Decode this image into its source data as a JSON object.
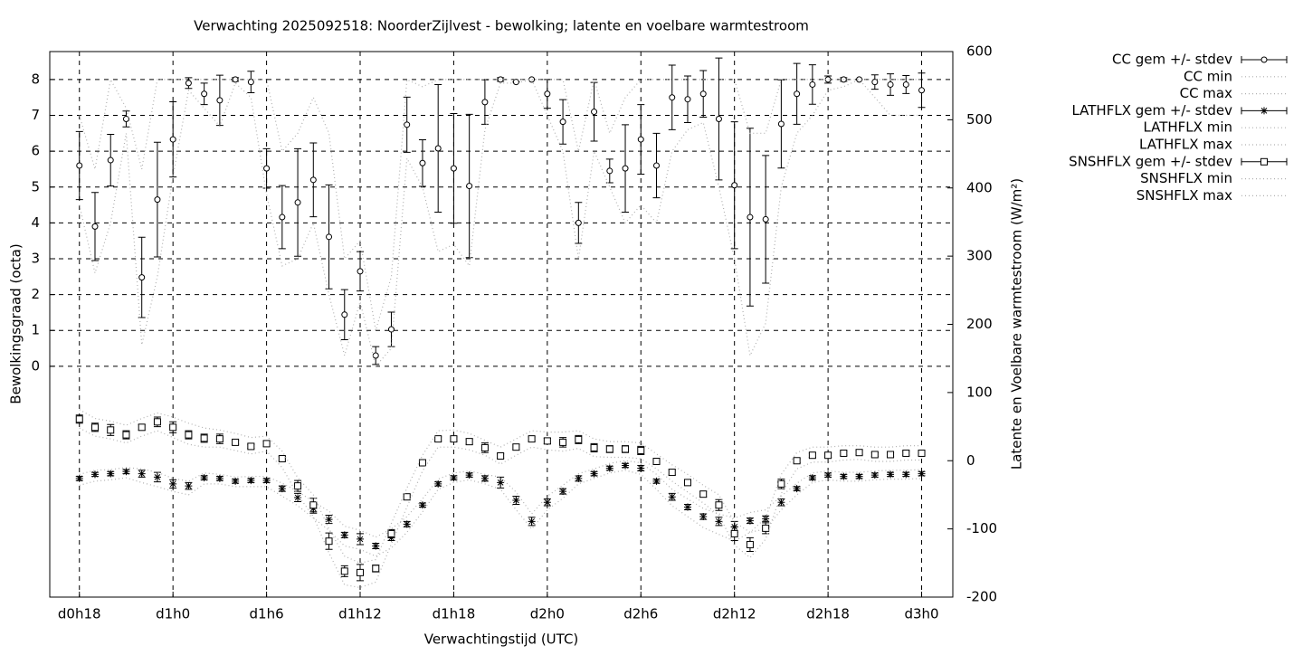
{
  "chart_data": {
    "type": "line",
    "title": "Verwachting 2025092518: NoorderZijlvest - bewolking; latente en voelbare warmtestroom",
    "x_label": "Verwachtingstijd (UTC)",
    "y_label": "Bewolkingsgraad (octa)",
    "y2_label": "Latente en Voelbare warmtestroom (W/m²)",
    "x": [
      18,
      19,
      20,
      21,
      22,
      23,
      24,
      25,
      26,
      27,
      28,
      29,
      30,
      31,
      32,
      33,
      34,
      35,
      36,
      37,
      38,
      39,
      40,
      41,
      42,
      43,
      44,
      45,
      46,
      47,
      48,
      49,
      50,
      51,
      52,
      53,
      54,
      55,
      56,
      57,
      58,
      59,
      60,
      61,
      62,
      63,
      64,
      65,
      66,
      67,
      68,
      69,
      70,
      71,
      72
    ],
    "xlim": [
      16.1,
      74
    ],
    "xticks": [
      {
        "value": 18,
        "label": "d0h18"
      },
      {
        "value": 24,
        "label": "d1h0"
      },
      {
        "value": 30,
        "label": "d1h6"
      },
      {
        "value": 36,
        "label": "d1h12"
      },
      {
        "value": 42,
        "label": "d1h18"
      },
      {
        "value": 48,
        "label": "d2h0"
      },
      {
        "value": 54,
        "label": "d2h6"
      },
      {
        "value": 60,
        "label": "d2h12"
      },
      {
        "value": 66,
        "label": "d2h18"
      },
      {
        "value": 72,
        "label": "d3h0"
      }
    ],
    "ylim": [
      -6.44,
      8.78
    ],
    "yticks": [
      0,
      1,
      2,
      3,
      4,
      5,
      6,
      7,
      8
    ],
    "y2lim": [
      -200,
      600
    ],
    "y2ticks": [
      -200,
      -100,
      0,
      100,
      200,
      300,
      400,
      500,
      600
    ],
    "grid": true,
    "legend": "outside-right",
    "series": [
      {
        "name": "CC gem +/- stdev",
        "axis": "y",
        "style": "errorbars",
        "marker": "circle",
        "color": "#000000",
        "values": [
          5.6,
          3.9,
          5.75,
          6.9,
          2.48,
          4.65,
          6.33,
          7.9,
          7.6,
          7.42,
          8.0,
          7.93,
          5.52,
          4.16,
          4.57,
          5.2,
          3.61,
          1.44,
          2.65,
          0.3,
          1.03,
          6.74,
          5.67,
          6.08,
          5.52,
          5.03,
          7.37,
          8.0,
          7.93,
          8.0,
          7.6,
          6.82,
          4.0,
          7.1,
          5.45,
          5.52,
          6.33,
          5.6,
          7.5,
          7.45,
          7.6,
          6.9,
          5.05,
          4.16,
          4.1,
          6.76,
          7.6,
          7.86,
          8.0,
          8.0,
          8.0,
          7.93,
          7.86,
          7.86,
          7.7
        ],
        "errors": [
          0.95,
          0.95,
          0.72,
          0.22,
          1.12,
          1.6,
          1.05,
          0.15,
          0.3,
          0.7,
          0.05,
          0.3,
          0.55,
          0.88,
          1.5,
          1.03,
          1.45,
          0.7,
          0.55,
          0.25,
          0.48,
          0.77,
          0.65,
          1.78,
          1.53,
          2.0,
          0.62,
          0.05,
          0,
          0,
          0.4,
          0.62,
          0.57,
          0.82,
          0.33,
          1.22,
          0.97,
          0.9,
          0.9,
          0.65,
          0.65,
          1.7,
          1.77,
          2.48,
          1.78,
          1.23,
          0.85,
          0.55,
          0.1,
          0.05,
          0,
          0.2,
          0.3,
          0.25,
          0.48
        ]
      },
      {
        "name": "CC min",
        "axis": "y",
        "style": "dotted",
        "color": "#b0b0b0",
        "values": [
          4.5,
          2.6,
          4,
          6.5,
          0.6,
          2.5,
          5.3,
          7.7,
          7.2,
          6.7,
          7.9,
          7.5,
          4.8,
          2.8,
          3,
          4,
          2,
          0.3,
          1.8,
          0,
          0.5,
          5.8,
          5,
          3.2,
          3.4,
          2.8,
          6.6,
          7.9,
          7.9,
          8,
          7,
          6,
          3,
          6,
          5,
          4,
          4.5,
          4,
          6,
          6.6,
          6.8,
          5,
          3,
          0.3,
          1.2,
          5,
          6.5,
          7,
          7.7,
          7.8,
          8,
          7.5,
          7,
          7,
          7
        ]
      },
      {
        "name": "CC max",
        "axis": "y",
        "style": "dotted",
        "color": "#b0b0b0",
        "values": [
          7,
          5.5,
          8,
          7.2,
          5.5,
          8,
          8,
          8,
          8,
          8,
          8,
          8,
          8,
          6,
          6.5,
          7.5,
          6.5,
          3,
          3.5,
          1,
          2.5,
          8,
          7.8,
          8,
          8,
          8,
          8,
          8,
          8,
          8,
          8,
          8,
          6,
          8,
          6.5,
          7.5,
          8,
          8,
          8,
          8,
          8,
          8,
          8,
          6.5,
          6.5,
          8,
          8,
          8,
          8,
          8,
          8,
          8,
          8,
          8,
          8
        ]
      },
      {
        "name": "LATHFLX gem +/- stdev",
        "axis": "y2",
        "style": "errorbars",
        "marker": "star",
        "color": "#000000",
        "values": [
          -26,
          -20,
          -19,
          -16,
          -19,
          -24,
          -34,
          -37,
          -25,
          -26,
          -30,
          -29,
          -29,
          -41,
          -54,
          -70,
          -86,
          -109,
          -115,
          -125,
          -113,
          -93,
          -65,
          -34,
          -25,
          -21,
          -26,
          -32,
          -58,
          -89,
          -61,
          -45,
          -26,
          -19,
          -11,
          -7,
          -11,
          -30,
          -53,
          -68,
          -82,
          -89,
          -97,
          -88,
          -85,
          -61,
          -41,
          -25,
          -21,
          -23,
          -23,
          -21,
          -20,
          -20,
          -19
        ],
        "errors": [
          3,
          3,
          3,
          3,
          5,
          7,
          6,
          5,
          3,
          3,
          3,
          3,
          3,
          4,
          6,
          7,
          6,
          4,
          8,
          4,
          4,
          4,
          3,
          3,
          3,
          3,
          4,
          8,
          6,
          6,
          5,
          4,
          4,
          3,
          3,
          3,
          4,
          3,
          5,
          4,
          4,
          6,
          8,
          4,
          4,
          5,
          3,
          3,
          3,
          3,
          3,
          3,
          3,
          3,
          3
        ]
      },
      {
        "name": "LATHFLX min",
        "axis": "y2",
        "style": "dotted",
        "color": "#b0b0b0",
        "values": [
          -36,
          -30,
          -28,
          -25,
          -32,
          -38,
          -45,
          -50,
          -34,
          -34,
          -38,
          -38,
          -38,
          -52,
          -66,
          -84,
          -102,
          -125,
          -130,
          -140,
          -128,
          -105,
          -75,
          -42,
          -32,
          -28,
          -34,
          -42,
          -72,
          -100,
          -72,
          -55,
          -34,
          -26,
          -18,
          -14,
          -20,
          -42,
          -66,
          -82,
          -98,
          -108,
          -118,
          -105,
          -100,
          -72,
          -50,
          -32,
          -28,
          -30,
          -30,
          -28,
          -27,
          -27,
          -26
        ]
      },
      {
        "name": "LATHFLX max",
        "axis": "y2",
        "style": "dotted",
        "color": "#b0b0b0",
        "values": [
          -20,
          -14,
          -13,
          -10,
          -12,
          -17,
          -26,
          -30,
          -18,
          -20,
          -24,
          -23,
          -23,
          -33,
          -45,
          -60,
          -74,
          -96,
          -102,
          -112,
          -100,
          -82,
          -56,
          -27,
          -18,
          -15,
          -20,
          -24,
          -46,
          -78,
          -52,
          -36,
          -19,
          -12,
          -4,
          0,
          -3,
          -20,
          -42,
          -56,
          -70,
          -78,
          -84,
          -76,
          -72,
          -52,
          -33,
          -18,
          -15,
          -17,
          -17,
          -15,
          -14,
          -14,
          -13
        ]
      },
      {
        "name": "SNSHFLX gem +/- stdev",
        "axis": "y2",
        "style": "errorbars",
        "marker": "square",
        "color": "#000000",
        "values": [
          61,
          49,
          45,
          38,
          49,
          57,
          49,
          38,
          33,
          32,
          27,
          21,
          25,
          3,
          -37,
          -65,
          -118,
          -162,
          -164,
          -158,
          -107,
          -53,
          -3,
          32,
          32,
          28,
          19,
          7,
          20,
          32,
          29,
          27,
          31,
          19,
          17,
          17,
          15,
          -1,
          -17,
          -32,
          -49,
          -65,
          -107,
          -123,
          -99,
          -34,
          0,
          8,
          8,
          11,
          12,
          9,
          9,
          11,
          11
        ],
        "errors": [
          6,
          6,
          8,
          6,
          4,
          7,
          8,
          6,
          6,
          7,
          3,
          3,
          4,
          3,
          8,
          10,
          12,
          8,
          12,
          5,
          6,
          4,
          3,
          3,
          3,
          4,
          7,
          3,
          4,
          3,
          4,
          7,
          6,
          6,
          5,
          5,
          6,
          3,
          4,
          4,
          4,
          8,
          10,
          10,
          8,
          7,
          3,
          3,
          3,
          3,
          3,
          3,
          3,
          3,
          3
        ]
      },
      {
        "name": "SNSHFLX min",
        "axis": "y2",
        "style": "dotted",
        "color": "#b0b0b0",
        "values": [
          48,
          36,
          32,
          26,
          36,
          44,
          34,
          24,
          20,
          20,
          15,
          10,
          14,
          -10,
          -50,
          -82,
          -135,
          -182,
          -186,
          -178,
          -122,
          -68,
          -15,
          20,
          20,
          16,
          8,
          -5,
          8,
          20,
          16,
          14,
          18,
          6,
          5,
          5,
          3,
          -12,
          -30,
          -46,
          -62,
          -80,
          -124,
          -142,
          -115,
          -48,
          -12,
          -2,
          -2,
          1,
          2,
          -1,
          -1,
          1,
          1
        ]
      },
      {
        "name": "SNSHFLX max",
        "axis": "y2",
        "style": "dotted",
        "color": "#b0b0b0",
        "values": [
          75,
          62,
          58,
          52,
          62,
          70,
          64,
          55,
          48,
          45,
          40,
          34,
          36,
          14,
          -25,
          -50,
          -100,
          -140,
          -150,
          -145,
          -92,
          -40,
          8,
          44,
          45,
          40,
          30,
          20,
          32,
          44,
          42,
          42,
          44,
          32,
          28,
          28,
          26,
          10,
          -6,
          -20,
          -36,
          -50,
          -90,
          -105,
          -84,
          -20,
          12,
          20,
          20,
          22,
          22,
          20,
          20,
          22,
          22
        ]
      }
    ]
  }
}
